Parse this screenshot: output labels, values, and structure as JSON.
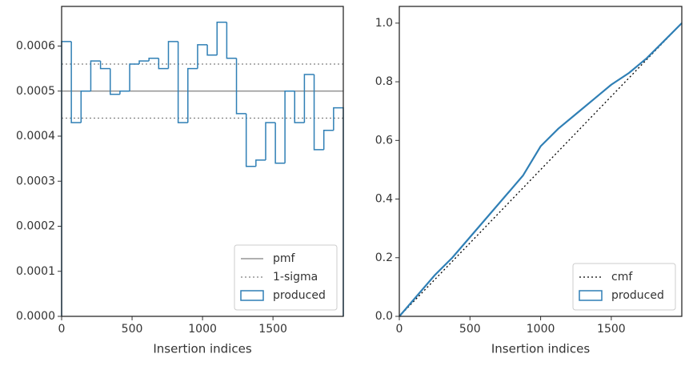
{
  "chart_data": [
    {
      "type": "histogram",
      "xlabel": "Insertion indices",
      "bins": [
        0,
        69,
        138,
        207,
        276,
        345,
        414,
        483,
        551,
        620,
        689,
        758,
        827,
        896,
        965,
        1034,
        1103,
        1172,
        1241,
        1310,
        1379,
        1448,
        1517,
        1585,
        1654,
        1723,
        1792,
        1861,
        1930,
        1999
      ],
      "series": [
        {
          "name": "produced",
          "color": "#2f7fb5",
          "values": [
            0.00061,
            0.00043,
            0.0005,
            0.000567,
            0.00055,
            0.000493,
            0.0005,
            0.00056,
            0.000567,
            0.000573,
            0.00055,
            0.00061,
            0.00043,
            0.00055,
            0.000603,
            0.00058,
            0.000653,
            0.000573,
            0.00045,
            0.000333,
            0.000347,
            0.00043,
            0.00034,
            0.0005,
            0.00043,
            0.000537,
            0.00037,
            0.000413,
            0.000463
          ]
        }
      ],
      "hlines": [
        {
          "name": "pmf",
          "color": "#808080",
          "dash": "solid",
          "values": [
            0.0005
          ]
        },
        {
          "name": "1-sigma",
          "color": "#808080",
          "dash": "dotted",
          "values": [
            0.00044,
            0.00056
          ]
        }
      ],
      "xlim": [
        0,
        1999
      ],
      "xticks": [
        0,
        500,
        1000,
        1500
      ],
      "ylim": [
        0,
        0.000688
      ],
      "yticks": [
        {
          "value": 0,
          "label": "0.0000"
        },
        {
          "value": 0.0001,
          "label": "0.0001"
        },
        {
          "value": 0.0002,
          "label": "0.0002"
        },
        {
          "value": 0.0003,
          "label": "0.0003"
        },
        {
          "value": 0.0004,
          "label": "0.0004"
        },
        {
          "value": 0.0005,
          "label": "0.0005"
        },
        {
          "value": 0.0006,
          "label": "0.0006"
        }
      ],
      "legend": "lower right"
    },
    {
      "type": "line",
      "xlabel": "Insertion indices",
      "series": [
        {
          "name": "cmf",
          "color": "#000000",
          "dash": "dotted",
          "x": [
            0,
            1999
          ],
          "values": [
            0,
            1
          ]
        },
        {
          "name": "produced",
          "color": "#2f7fb5",
          "dash": "solid",
          "x": [
            0,
            125,
            250,
            375,
            500,
            625,
            750,
            875,
            1000,
            1125,
            1250,
            1375,
            1500,
            1625,
            1750,
            1875,
            1999
          ],
          "values": [
            0,
            0.07,
            0.14,
            0.2,
            0.27,
            0.34,
            0.41,
            0.48,
            0.58,
            0.64,
            0.69,
            0.74,
            0.79,
            0.83,
            0.88,
            0.94,
            1
          ]
        }
      ],
      "xlim": [
        0,
        1999
      ],
      "xticks": [
        0,
        500,
        1000,
        1500
      ],
      "ylim": [
        0,
        1.057
      ],
      "yticks": [
        {
          "value": 0,
          "label": "0.0"
        },
        {
          "value": 0.2,
          "label": "0.2"
        },
        {
          "value": 0.4,
          "label": "0.4"
        },
        {
          "value": 0.6,
          "label": "0.6"
        },
        {
          "value": 0.8,
          "label": "0.8"
        },
        {
          "value": 1,
          "label": "1.0"
        }
      ],
      "legend": "lower right"
    }
  ]
}
